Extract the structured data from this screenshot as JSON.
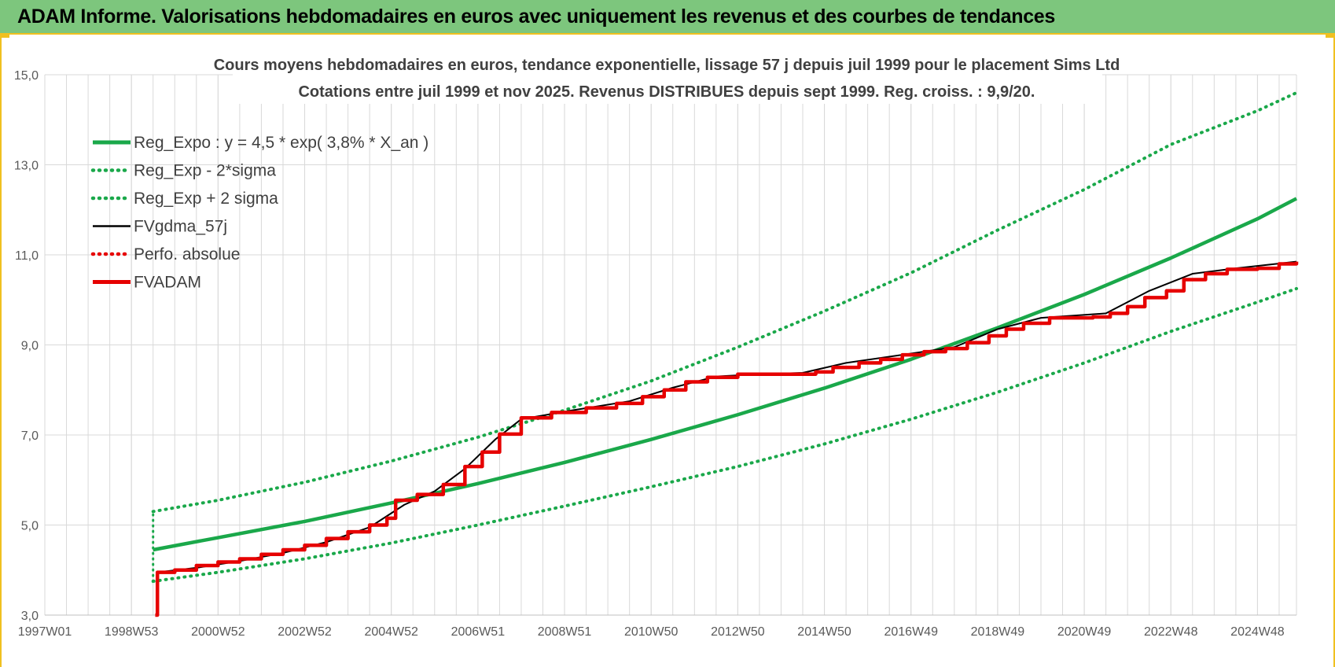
{
  "header": {
    "title": "ADAM Informe. Valorisations hebdomadaires en euros avec uniquement les revenus et des courbes de tendances"
  },
  "colors": {
    "header_bg": "#7dc67d",
    "accent": "#f0c020",
    "trend_green": "#1aa84a",
    "price_red": "#e60000",
    "smooth_black": "#000000",
    "grid": "#d9d9d9"
  },
  "chart_data": {
    "type": "line",
    "title": [
      "Cours moyens hebdomadaires en euros, tendance exponentielle, lissage 57 j depuis juil 1999 pour le placement Sims Ltd",
      "Cotations entre juil 1999 et nov 2025. Revenus DISTRIBUES depuis sept 1999. Reg. croiss. : 9,9/20."
    ],
    "xlabel": "",
    "ylabel": "",
    "x_unit": "year",
    "xlim": [
      1997.0,
      2025.9
    ],
    "ylim": [
      3.0,
      15.0
    ],
    "x_ticks": [
      {
        "x": 1997.0,
        "label": "1997W01"
      },
      {
        "x": 1999.0,
        "label": "1998W53"
      },
      {
        "x": 2001.0,
        "label": "2000W52"
      },
      {
        "x": 2003.0,
        "label": "2002W52"
      },
      {
        "x": 2005.0,
        "label": "2004W52"
      },
      {
        "x": 2007.0,
        "label": "2006W51"
      },
      {
        "x": 2009.0,
        "label": "2008W51"
      },
      {
        "x": 2011.0,
        "label": "2010W50"
      },
      {
        "x": 2013.0,
        "label": "2012W50"
      },
      {
        "x": 2015.0,
        "label": "2014W50"
      },
      {
        "x": 2017.0,
        "label": "2016W49"
      },
      {
        "x": 2019.0,
        "label": "2018W49"
      },
      {
        "x": 2021.0,
        "label": "2020W49"
      },
      {
        "x": 2023.0,
        "label": "2022W48"
      },
      {
        "x": 2025.0,
        "label": "2024W48"
      }
    ],
    "y_ticks": [
      {
        "y": 3,
        "label": "3,0"
      },
      {
        "y": 5,
        "label": "5,0"
      },
      {
        "y": 7,
        "label": "7,0"
      },
      {
        "y": 9,
        "label": "9,0"
      },
      {
        "y": 11,
        "label": "11,0"
      },
      {
        "y": 13,
        "label": "13,0"
      },
      {
        "y": 15,
        "label": "15,0"
      }
    ],
    "grid": true,
    "legend_position": "top-left",
    "series": [
      {
        "name": "Reg_Expo : y = 4,5 * exp( 3,8% *  X_an )",
        "style": "solid-thick",
        "color": "#1aa84a",
        "points": [
          [
            1999.5,
            4.45
          ],
          [
            2001,
            4.72
          ],
          [
            2003,
            5.08
          ],
          [
            2005,
            5.49
          ],
          [
            2007,
            5.92
          ],
          [
            2009,
            6.39
          ],
          [
            2011,
            6.9
          ],
          [
            2013,
            7.45
          ],
          [
            2015,
            8.04
          ],
          [
            2017,
            8.68
          ],
          [
            2019,
            9.38
          ],
          [
            2021,
            10.12
          ],
          [
            2023,
            10.93
          ],
          [
            2025,
            11.8
          ],
          [
            2025.9,
            12.25
          ]
        ]
      },
      {
        "name": "Reg_Exp - 2*sigma",
        "style": "dotted",
        "color": "#1aa84a",
        "points": [
          [
            1999.5,
            5.3
          ],
          [
            2001,
            5.55
          ],
          [
            2003,
            5.95
          ],
          [
            2005,
            6.42
          ],
          [
            2007,
            6.95
          ],
          [
            2009,
            7.55
          ],
          [
            2011,
            8.2
          ],
          [
            2013,
            8.95
          ],
          [
            2015,
            9.75
          ],
          [
            2017,
            10.6
          ],
          [
            2019,
            11.55
          ],
          [
            2021,
            12.45
          ],
          [
            2023,
            13.45
          ],
          [
            2025,
            14.2
          ],
          [
            2025.9,
            14.6
          ]
        ]
      },
      {
        "name": "Reg_Exp + 2 sigma",
        "style": "dotted",
        "color": "#1aa84a",
        "points": [
          [
            1999.5,
            3.75
          ],
          [
            2001,
            3.95
          ],
          [
            2003,
            4.25
          ],
          [
            2005,
            4.6
          ],
          [
            2007,
            5.0
          ],
          [
            2009,
            5.42
          ],
          [
            2011,
            5.85
          ],
          [
            2013,
            6.3
          ],
          [
            2015,
            6.8
          ],
          [
            2017,
            7.35
          ],
          [
            2019,
            7.95
          ],
          [
            2021,
            8.6
          ],
          [
            2023,
            9.3
          ],
          [
            2025,
            9.95
          ],
          [
            2025.9,
            10.25
          ]
        ]
      },
      {
        "name": "FVgdma_57j",
        "style": "solid",
        "color": "#000000",
        "points": [
          [
            1999.6,
            3.95
          ],
          [
            2000.5,
            4.05
          ],
          [
            2001.5,
            4.2
          ],
          [
            2002.5,
            4.38
          ],
          [
            2003.5,
            4.62
          ],
          [
            2004.5,
            4.95
          ],
          [
            2005.3,
            5.45
          ],
          [
            2006,
            5.75
          ],
          [
            2006.7,
            6.25
          ],
          [
            2007.4,
            6.9
          ],
          [
            2008,
            7.35
          ],
          [
            2009.2,
            7.55
          ],
          [
            2010.5,
            7.75
          ],
          [
            2011.5,
            8.05
          ],
          [
            2012.5,
            8.3
          ],
          [
            2013.5,
            8.35
          ],
          [
            2014.5,
            8.38
          ],
          [
            2015.5,
            8.6
          ],
          [
            2016.8,
            8.78
          ],
          [
            2018,
            8.95
          ],
          [
            2019,
            9.35
          ],
          [
            2020,
            9.6
          ],
          [
            2021.5,
            9.7
          ],
          [
            2022.5,
            10.2
          ],
          [
            2023.5,
            10.58
          ],
          [
            2024.5,
            10.7
          ],
          [
            2025.9,
            10.85
          ]
        ]
      },
      {
        "name": "Perfo. absolue",
        "style": "dotted",
        "color": "#e60000",
        "points": []
      },
      {
        "name": "FVADAM",
        "style": "step-thick",
        "color": "#e60000",
        "points": [
          [
            1999.55,
            3.0
          ],
          [
            1999.6,
            3.95
          ],
          [
            2000,
            4.0
          ],
          [
            2000.5,
            4.1
          ],
          [
            2001,
            4.18
          ],
          [
            2001.5,
            4.25
          ],
          [
            2002,
            4.35
          ],
          [
            2002.5,
            4.45
          ],
          [
            2003,
            4.55
          ],
          [
            2003.5,
            4.7
          ],
          [
            2004,
            4.85
          ],
          [
            2004.5,
            5.0
          ],
          [
            2004.9,
            5.15
          ],
          [
            2005.1,
            5.55
          ],
          [
            2005.6,
            5.68
          ],
          [
            2006.2,
            5.9
          ],
          [
            2006.7,
            6.3
          ],
          [
            2007.1,
            6.62
          ],
          [
            2007.5,
            7.02
          ],
          [
            2008,
            7.38
          ],
          [
            2008.7,
            7.5
          ],
          [
            2009.5,
            7.6
          ],
          [
            2010.2,
            7.7
          ],
          [
            2010.8,
            7.85
          ],
          [
            2011.3,
            8.0
          ],
          [
            2011.8,
            8.18
          ],
          [
            2012.3,
            8.28
          ],
          [
            2013,
            8.35
          ],
          [
            2014,
            8.35
          ],
          [
            2014.8,
            8.4
          ],
          [
            2015.2,
            8.5
          ],
          [
            2015.8,
            8.6
          ],
          [
            2016.3,
            8.68
          ],
          [
            2016.8,
            8.78
          ],
          [
            2017.3,
            8.85
          ],
          [
            2017.8,
            8.92
          ],
          [
            2018.3,
            9.05
          ],
          [
            2018.8,
            9.2
          ],
          [
            2019.2,
            9.35
          ],
          [
            2019.6,
            9.48
          ],
          [
            2020.2,
            9.6
          ],
          [
            2021.2,
            9.62
          ],
          [
            2021.6,
            9.7
          ],
          [
            2022,
            9.85
          ],
          [
            2022.4,
            10.05
          ],
          [
            2022.9,
            10.2
          ],
          [
            2023.3,
            10.45
          ],
          [
            2023.8,
            10.58
          ],
          [
            2024.3,
            10.68
          ],
          [
            2025,
            10.7
          ],
          [
            2025.5,
            10.8
          ],
          [
            2025.9,
            10.85
          ]
        ]
      }
    ]
  }
}
